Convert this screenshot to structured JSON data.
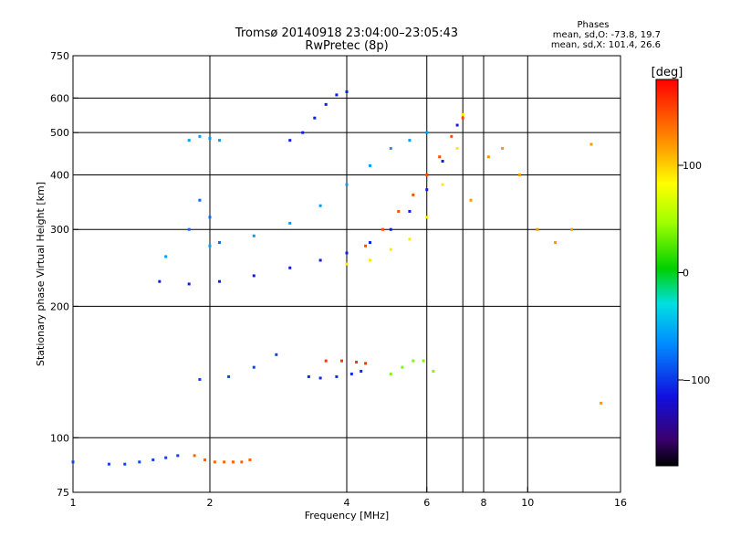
{
  "chart_data": {
    "type": "scatter",
    "title": "Tromsø 20140918 23:04:00–23:05:43",
    "subtitle": "RwPretec (8p)",
    "xlabel": "Frequency [MHz]",
    "ylabel": "Stationary phase Virtual Height [km]",
    "xscale": "log",
    "yscale": "log",
    "xlim": [
      1,
      16
    ],
    "ylim": [
      75,
      750
    ],
    "x_ticks": [
      1,
      2,
      4,
      6,
      8,
      10,
      16
    ],
    "x_tick_labels": [
      "1",
      "2",
      "4",
      "6",
      "8",
      "10",
      "16"
    ],
    "x_gridlines": [
      2,
      4,
      6,
      7.2,
      8,
      10
    ],
    "y_ticks": [
      75,
      100,
      200,
      300,
      400,
      500,
      600,
      750
    ],
    "y_tick_labels": [
      "75",
      "100",
      "200",
      "300",
      "400",
      "500",
      "600",
      "750"
    ],
    "y_gridlines": [
      100,
      200,
      300,
      400,
      500,
      600
    ],
    "legend": {
      "title": "Phases",
      "lines": [
        "mean, sd,O: -73.8, 19.7",
        "mean, sd,X: 101.4, 26.6"
      ]
    },
    "colorbar": {
      "label": "[deg]",
      "range": [
        -180,
        180
      ],
      "ticks": [
        100,
        0,
        -100
      ],
      "tick_labels": [
        "100",
        "0",
        "−100"
      ]
    },
    "traces": [
      {
        "name": "",
        "x": [
          1.0,
          1.2,
          1.3,
          1.4,
          1.5,
          1.6,
          1.7
        ],
        "y": [
          88,
          87,
          87,
          88,
          89,
          90,
          91
        ],
        "phase": -95
      },
      {
        "name": "",
        "x": [
          1.85,
          1.95,
          2.05,
          2.15,
          2.25,
          2.35,
          2.45
        ],
        "y": [
          91,
          89,
          88,
          88,
          88,
          88,
          89
        ],
        "phase": 140
      },
      {
        "name": "",
        "x": [
          1.55,
          1.8,
          2.1,
          2.5,
          3.0,
          3.5,
          4.0,
          4.5,
          5.0,
          5.5,
          6.0,
          6.5,
          7.0
        ],
        "y": [
          228,
          225,
          228,
          235,
          245,
          255,
          265,
          280,
          300,
          330,
          370,
          430,
          520
        ],
        "phase": -110
      },
      {
        "name": "",
        "x": [
          4.0,
          4.5,
          5.0,
          5.5,
          6.0,
          6.5,
          7.0,
          7.2
        ],
        "y": [
          250,
          255,
          270,
          285,
          320,
          380,
          460,
          550
        ],
        "phase": 90
      },
      {
        "name": "",
        "x": [
          4.4,
          4.8,
          5.2,
          5.6,
          6.0,
          6.4,
          6.8,
          7.2
        ],
        "y": [
          275,
          300,
          330,
          360,
          400,
          440,
          490,
          540
        ],
        "phase": 150
      },
      {
        "name": "",
        "x": [
          1.6,
          2.0,
          2.5,
          3.0,
          3.5,
          4.0,
          4.5,
          5.0,
          5.5,
          6.0
        ],
        "y": [
          260,
          275,
          290,
          310,
          340,
          380,
          420,
          460,
          480,
          500
        ],
        "phase": -60
      },
      {
        "name": "",
        "x": [
          1.8,
          1.9,
          2.0,
          2.1
        ],
        "y": [
          300,
          350,
          320,
          280
        ],
        "phase": -80
      },
      {
        "name": "",
        "x": [
          1.8,
          1.9,
          2.0,
          2.1
        ],
        "y": [
          480,
          490,
          485,
          480
        ],
        "phase": -60
      },
      {
        "name": "",
        "x": [
          3.0,
          3.2,
          3.4,
          3.6,
          3.8,
          4.0
        ],
        "y": [
          480,
          500,
          540,
          580,
          610,
          620
        ],
        "phase": -110
      },
      {
        "name": "",
        "x": [
          1.9,
          2.2,
          2.5,
          2.8
        ],
        "y": [
          136,
          138,
          145,
          155
        ],
        "phase": -95
      },
      {
        "name": "",
        "x": [
          3.3,
          3.5,
          3.8,
          4.1,
          4.3
        ],
        "y": [
          138,
          137,
          138,
          140,
          142
        ],
        "phase": -105
      },
      {
        "name": "",
        "x": [
          3.6,
          3.9,
          4.2,
          4.4
        ],
        "y": [
          150,
          150,
          149,
          148
        ],
        "phase": 160
      },
      {
        "name": "",
        "x": [
          5.0,
          5.3,
          5.6,
          5.9,
          6.2
        ],
        "y": [
          140,
          145,
          150,
          150,
          142
        ],
        "phase": 40
      },
      {
        "name": "",
        "x": [
          7.5,
          8.2,
          8.8,
          9.6,
          10.5,
          11.5,
          12.5,
          13.8,
          14.5
        ],
        "y": [
          350,
          440,
          460,
          400,
          300,
          280,
          300,
          470,
          120
        ],
        "phase": 120
      }
    ]
  }
}
